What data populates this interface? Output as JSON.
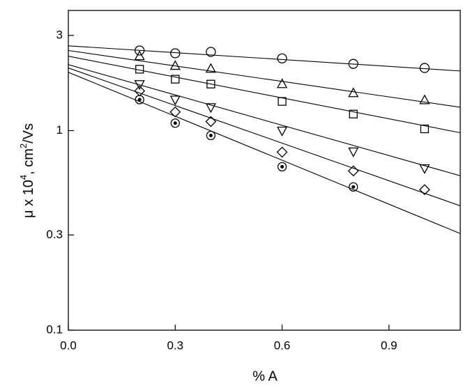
{
  "chart_data": {
    "type": "scatter",
    "xlabel": "% A",
    "ylabel_parts": [
      "μ x 10",
      "4",
      ", cm",
      "2",
      "/Vs"
    ],
    "xlim": [
      0,
      1.1
    ],
    "xticks": [
      {
        "value": 0,
        "label": "0.0"
      },
      0.3,
      0.6,
      0.9
    ],
    "ylim": [
      0.1,
      4
    ],
    "yticks": [
      0.1,
      0.3,
      1,
      3
    ],
    "log_y": true,
    "grid": false,
    "x": [
      0.2,
      0.3,
      0.4,
      0.6,
      0.8,
      1.0
    ],
    "fit_x": [
      0,
      1.1
    ],
    "series": [
      {
        "marker": "circle",
        "color": "#000000",
        "values": [
          2.52,
          2.44,
          2.48,
          2.3,
          2.16,
          2.06
        ],
        "fit": [
          2.66,
          1.99
        ]
      },
      {
        "marker": "triangle",
        "color": "#000000",
        "values": [
          2.36,
          2.11,
          2.04,
          1.71,
          1.54,
          1.42
        ],
        "fit": [
          2.52,
          1.31
        ]
      },
      {
        "marker": "square",
        "color": "#000000",
        "values": [
          2.03,
          1.81,
          1.71,
          1.4,
          1.21,
          1.02
        ],
        "fit": [
          2.36,
          0.976
        ]
      },
      {
        "marker": "triangle-down",
        "color": "#000000",
        "values": [
          1.71,
          1.43,
          1.31,
          1.0,
          0.786,
          0.648
        ],
        "fit": [
          2.14,
          0.594
        ]
      },
      {
        "marker": "diamond",
        "color": "#000000",
        "values": [
          1.58,
          1.24,
          1.11,
          0.78,
          0.628,
          0.506
        ],
        "fit": [
          2.06,
          0.42
        ]
      },
      {
        "marker": "circle-dot",
        "color": "#000000",
        "values": [
          1.43,
          1.09,
          0.945,
          0.659,
          0.522,
          null
        ],
        "fit": [
          1.96,
          0.305
        ]
      }
    ]
  }
}
